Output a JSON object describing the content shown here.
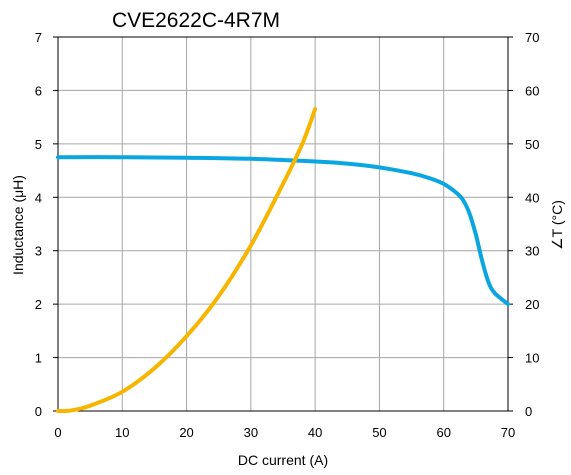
{
  "chart_data": {
    "type": "line",
    "title": "CVE2622C-4R7M",
    "xlabel": "DC current (A)",
    "ylabel": "Inductance (μH)",
    "y2label": "∠T (°C)",
    "xlim": [
      0,
      70
    ],
    "ylim": [
      0,
      7
    ],
    "y2lim": [
      0,
      70
    ],
    "x_ticks": [
      "0",
      "10",
      "20",
      "30",
      "40",
      "50",
      "60",
      "70"
    ],
    "y_ticks": [
      "0",
      "1",
      "2",
      "3",
      "4",
      "5",
      "6",
      "7"
    ],
    "y2_ticks": [
      "0",
      "10",
      "20",
      "30",
      "40",
      "50",
      "60",
      "70"
    ],
    "grid": true,
    "series": [
      {
        "axis": "left",
        "color": "#0aa6e2",
        "points": [
          [
            0,
            4.75
          ],
          [
            10,
            4.75
          ],
          [
            20,
            4.74
          ],
          [
            30,
            4.72
          ],
          [
            40,
            4.67
          ],
          [
            45,
            4.63
          ],
          [
            50,
            4.56
          ],
          [
            55,
            4.45
          ],
          [
            58,
            4.35
          ],
          [
            60,
            4.25
          ],
          [
            62,
            4.08
          ],
          [
            63,
            3.95
          ],
          [
            64,
            3.7
          ],
          [
            65,
            3.3
          ],
          [
            66,
            2.8
          ],
          [
            67,
            2.4
          ],
          [
            68,
            2.2
          ],
          [
            70,
            2.0
          ]
        ]
      },
      {
        "axis": "right",
        "color": "#f7b500",
        "points": [
          [
            0,
            0
          ],
          [
            2,
            0.1
          ],
          [
            5,
            1.0
          ],
          [
            10,
            3.6
          ],
          [
            15,
            8.0
          ],
          [
            20,
            14.0
          ],
          [
            25,
            21.5
          ],
          [
            30,
            31.0
          ],
          [
            35,
            42.5
          ],
          [
            38,
            50.0
          ],
          [
            40,
            56.5
          ]
        ]
      }
    ]
  }
}
